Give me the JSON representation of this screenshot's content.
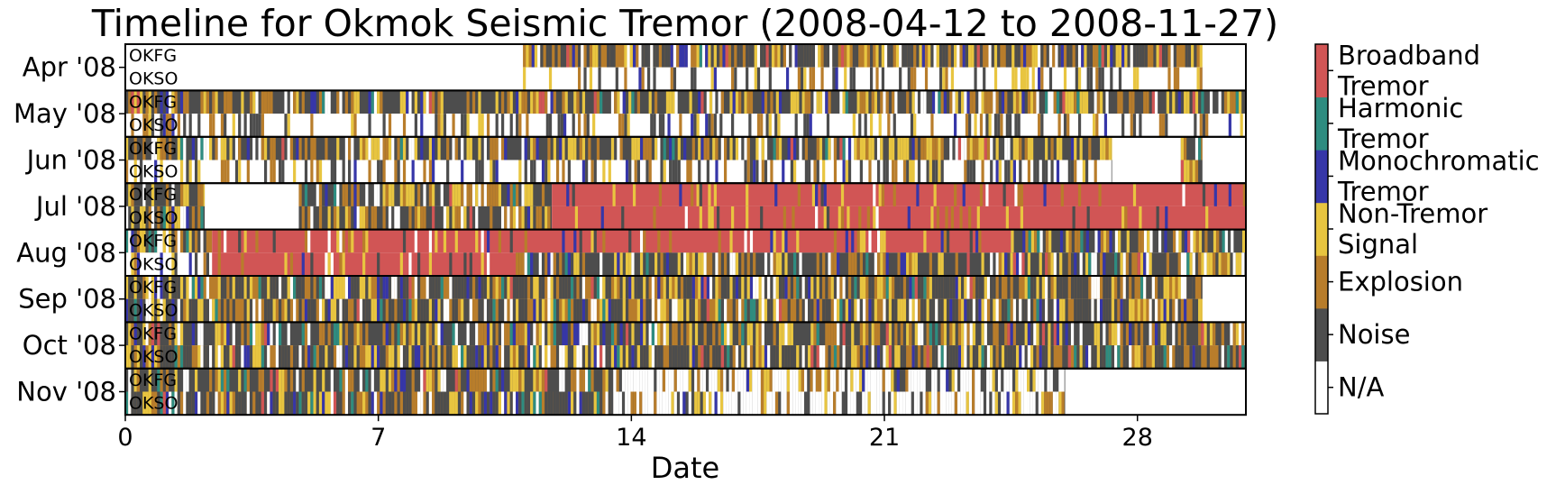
{
  "chart_data": {
    "type": "heatmap",
    "title": "Timeline for Okmok Seismic Tremor (2008-04-12 to 2008-11-27)",
    "xlabel": "Date",
    "ylabel": "",
    "xlim": [
      0,
      31
    ],
    "xticks": [
      0,
      7,
      14,
      21,
      28
    ],
    "stations": [
      "OKFG",
      "OKSO"
    ],
    "rows": [
      {
        "label": "Apr '08"
      },
      {
        "label": "May '08"
      },
      {
        "label": "Jun '08"
      },
      {
        "label": "Jul '08"
      },
      {
        "label": "Aug '08"
      },
      {
        "label": "Sep '08"
      },
      {
        "label": "Oct '08"
      },
      {
        "label": "Nov '08"
      }
    ],
    "classes": [
      {
        "name": "N/A",
        "color": "#ffffff"
      },
      {
        "name": "Noise",
        "color": "#4d4d4d"
      },
      {
        "name": "Explosion",
        "color": "#b87d2b"
      },
      {
        "name": "Non-Tremor Signal",
        "color": "#e8c540"
      },
      {
        "name": "Monochromatic Tremor",
        "color": "#3636a8"
      },
      {
        "name": "Harmonic Tremor",
        "color": "#2e8c80"
      },
      {
        "name": "Broadband Tremor",
        "color": "#d15555"
      }
    ],
    "colorbar_labels": [
      [
        "N/A"
      ],
      [
        "Noise"
      ],
      [
        "Explosion"
      ],
      [
        "Non-Tremor",
        "Signal"
      ],
      [
        "Monochromatic",
        "Tremor"
      ],
      [
        "Harmonic",
        "Tremor"
      ],
      [
        "Broadband",
        "Tremor"
      ]
    ],
    "segments": [
      {
        "row": 0,
        "station": 0,
        "start": 0,
        "end": 11,
        "class": "N/A",
        "mix": "solid"
      },
      {
        "row": 0,
        "station": 0,
        "start": 11,
        "end": 29.8,
        "class": "Explosion",
        "mix": "quiet"
      },
      {
        "row": 0,
        "station": 0,
        "start": 29.8,
        "end": 31,
        "class": "N/A",
        "mix": "solid"
      },
      {
        "row": 0,
        "station": 1,
        "start": 0,
        "end": 11,
        "class": "N/A",
        "mix": "solid"
      },
      {
        "row": 0,
        "station": 1,
        "start": 11,
        "end": 29.8,
        "class": "N/A",
        "mix": "gappy"
      },
      {
        "row": 0,
        "station": 1,
        "start": 29.8,
        "end": 31,
        "class": "N/A",
        "mix": "solid"
      },
      {
        "row": 1,
        "station": 0,
        "start": 0,
        "end": 31,
        "class": "Noise",
        "mix": "quiet"
      },
      {
        "row": 1,
        "station": 1,
        "start": 0,
        "end": 11,
        "class": "N/A",
        "mix": "gappy"
      },
      {
        "row": 1,
        "station": 1,
        "start": 11,
        "end": 31,
        "class": "N/A",
        "mix": "gappy"
      },
      {
        "row": 2,
        "station": 0,
        "start": 0,
        "end": 27.3,
        "class": "Noise",
        "mix": "quiet"
      },
      {
        "row": 2,
        "station": 0,
        "start": 27.3,
        "end": 29.2,
        "class": "N/A",
        "mix": "solid"
      },
      {
        "row": 2,
        "station": 0,
        "start": 29.2,
        "end": 29.8,
        "class": "Noise",
        "mix": "quiet"
      },
      {
        "row": 2,
        "station": 0,
        "start": 29.8,
        "end": 31,
        "class": "N/A",
        "mix": "solid"
      },
      {
        "row": 2,
        "station": 1,
        "start": 0,
        "end": 27.3,
        "class": "N/A",
        "mix": "gappy"
      },
      {
        "row": 2,
        "station": 1,
        "start": 27.3,
        "end": 29.2,
        "class": "N/A",
        "mix": "solid"
      },
      {
        "row": 2,
        "station": 1,
        "start": 29.2,
        "end": 29.8,
        "class": "Noise",
        "mix": "quiet"
      },
      {
        "row": 2,
        "station": 1,
        "start": 29.8,
        "end": 31,
        "class": "N/A",
        "mix": "solid"
      },
      {
        "row": 3,
        "station": 0,
        "start": 0,
        "end": 2.2,
        "class": "Noise",
        "mix": "quiet"
      },
      {
        "row": 3,
        "station": 0,
        "start": 2.2,
        "end": 4.8,
        "class": "N/A",
        "mix": "solid"
      },
      {
        "row": 3,
        "station": 0,
        "start": 4.8,
        "end": 11.8,
        "class": "Noise",
        "mix": "quiet"
      },
      {
        "row": 3,
        "station": 0,
        "start": 11.8,
        "end": 31,
        "class": "Broadband Tremor",
        "mix": "tremor"
      },
      {
        "row": 3,
        "station": 1,
        "start": 0,
        "end": 2.2,
        "class": "Noise",
        "mix": "quiet"
      },
      {
        "row": 3,
        "station": 1,
        "start": 2.2,
        "end": 4.8,
        "class": "N/A",
        "mix": "solid"
      },
      {
        "row": 3,
        "station": 1,
        "start": 4.8,
        "end": 11.8,
        "class": "Noise",
        "mix": "quiet"
      },
      {
        "row": 3,
        "station": 1,
        "start": 11.8,
        "end": 31,
        "class": "Broadband Tremor",
        "mix": "tremor"
      },
      {
        "row": 4,
        "station": 0,
        "start": 0,
        "end": 2.4,
        "class": "Explosion",
        "mix": "quiet"
      },
      {
        "row": 4,
        "station": 0,
        "start": 2.4,
        "end": 24.5,
        "class": "Broadband Tremor",
        "mix": "tremor"
      },
      {
        "row": 4,
        "station": 0,
        "start": 24.5,
        "end": 31,
        "class": "Noise",
        "mix": "quiet"
      },
      {
        "row": 4,
        "station": 1,
        "start": 0,
        "end": 2.4,
        "class": "N/A",
        "mix": "gappy"
      },
      {
        "row": 4,
        "station": 1,
        "start": 2.4,
        "end": 10.8,
        "class": "Broadband Tremor",
        "mix": "tremor"
      },
      {
        "row": 4,
        "station": 1,
        "start": 10.8,
        "end": 31,
        "class": "Noise",
        "mix": "quiet"
      },
      {
        "row": 5,
        "station": 0,
        "start": 0,
        "end": 29.8,
        "class": "Explosion",
        "mix": "quiet"
      },
      {
        "row": 5,
        "station": 0,
        "start": 29.8,
        "end": 31,
        "class": "N/A",
        "mix": "solid"
      },
      {
        "row": 5,
        "station": 1,
        "start": 0,
        "end": 29.8,
        "class": "Explosion",
        "mix": "quiet"
      },
      {
        "row": 5,
        "station": 1,
        "start": 29.8,
        "end": 31,
        "class": "N/A",
        "mix": "solid"
      },
      {
        "row": 6,
        "station": 0,
        "start": 0,
        "end": 31,
        "class": "Noise",
        "mix": "quiet"
      },
      {
        "row": 6,
        "station": 1,
        "start": 0,
        "end": 31,
        "class": "Explosion",
        "mix": "quiet"
      },
      {
        "row": 7,
        "station": 0,
        "start": 0,
        "end": 13.5,
        "class": "Noise",
        "mix": "quiet"
      },
      {
        "row": 7,
        "station": 0,
        "start": 13.5,
        "end": 26,
        "class": "Noise",
        "mix": "gappy"
      },
      {
        "row": 7,
        "station": 0,
        "start": 26,
        "end": 31,
        "class": "N/A",
        "mix": "solid"
      },
      {
        "row": 7,
        "station": 1,
        "start": 0,
        "end": 13.5,
        "class": "Explosion",
        "mix": "quiet"
      },
      {
        "row": 7,
        "station": 1,
        "start": 13.5,
        "end": 26,
        "class": "Noise",
        "mix": "gappy"
      },
      {
        "row": 7,
        "station": 1,
        "start": 26,
        "end": 31,
        "class": "N/A",
        "mix": "solid"
      }
    ]
  }
}
